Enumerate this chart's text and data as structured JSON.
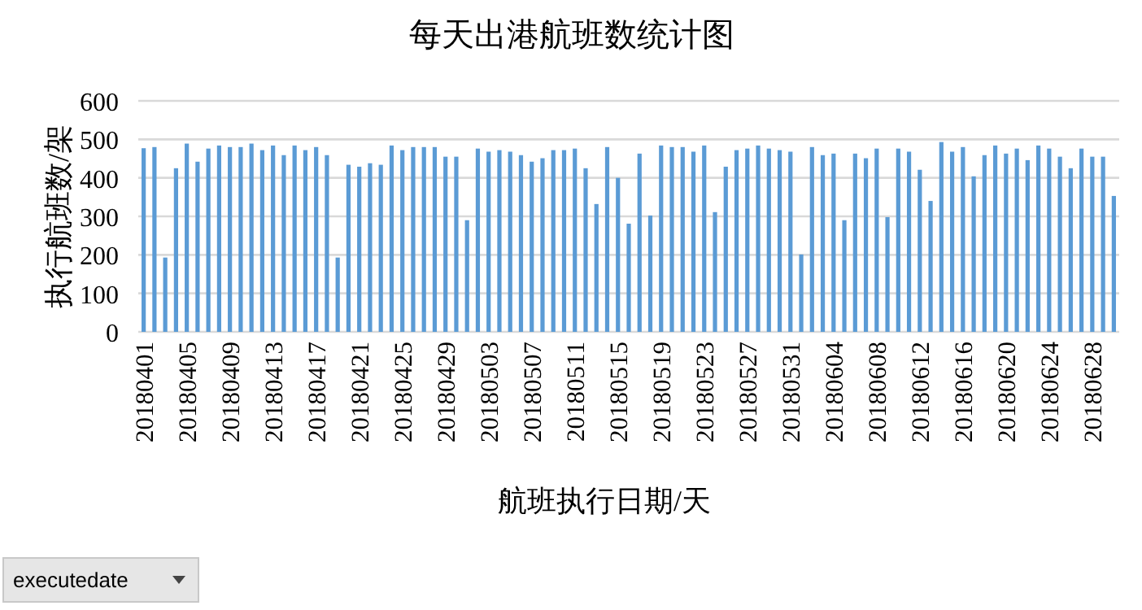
{
  "chart_data": {
    "type": "bar",
    "title": "每天出港航班数统计图",
    "xlabel": "航班执行日期/天",
    "ylabel": "执行航班数/架",
    "categories": [
      "20180401",
      null,
      null,
      null,
      "20180405",
      null,
      null,
      null,
      "20180409",
      null,
      null,
      null,
      "20180413",
      null,
      null,
      null,
      "20180417",
      null,
      null,
      null,
      "20180421",
      null,
      null,
      null,
      "20180425",
      null,
      null,
      null,
      "20180429",
      null,
      null,
      null,
      "20180503",
      null,
      null,
      null,
      "20180507",
      null,
      null,
      null,
      "20180511",
      null,
      null,
      null,
      "20180515",
      null,
      null,
      null,
      "20180519",
      null,
      null,
      null,
      "20180523",
      null,
      null,
      null,
      "20180527",
      null,
      null,
      null,
      "20180531",
      null,
      null,
      null,
      "20180604",
      null,
      null,
      null,
      "20180608",
      null,
      null,
      null,
      "20180612",
      null,
      null,
      null,
      "20180616",
      null,
      null,
      null,
      "20180620",
      null,
      null,
      null,
      "20180624",
      null,
      null,
      null,
      "20180628",
      null,
      null
    ],
    "values": [
      477,
      480,
      193,
      425,
      489,
      442,
      476,
      484,
      480,
      480,
      489,
      472,
      484,
      459,
      484,
      472,
      480,
      459,
      193,
      434,
      429,
      438,
      434,
      484,
      472,
      480,
      480,
      480,
      455,
      455,
      290,
      476,
      468,
      472,
      468,
      459,
      442,
      451,
      472,
      472,
      476,
      425,
      332,
      480,
      400,
      281,
      463,
      302,
      484,
      480,
      480,
      468,
      484,
      311,
      429,
      472,
      476,
      484,
      476,
      472,
      468,
      201,
      480,
      459,
      463,
      290,
      463,
      451,
      476,
      298,
      476,
      468,
      421,
      340,
      493,
      468,
      480,
      404,
      459,
      484,
      463,
      476,
      446,
      484,
      476,
      455,
      425,
      476,
      455,
      455,
      353
    ],
    "color": "#5b9bd5",
    "ylim": [
      0,
      600
    ],
    "yticks": [
      0,
      100,
      200,
      300,
      400,
      500,
      600
    ],
    "grid": "y",
    "annotations": [
      "executedate"
    ]
  }
}
